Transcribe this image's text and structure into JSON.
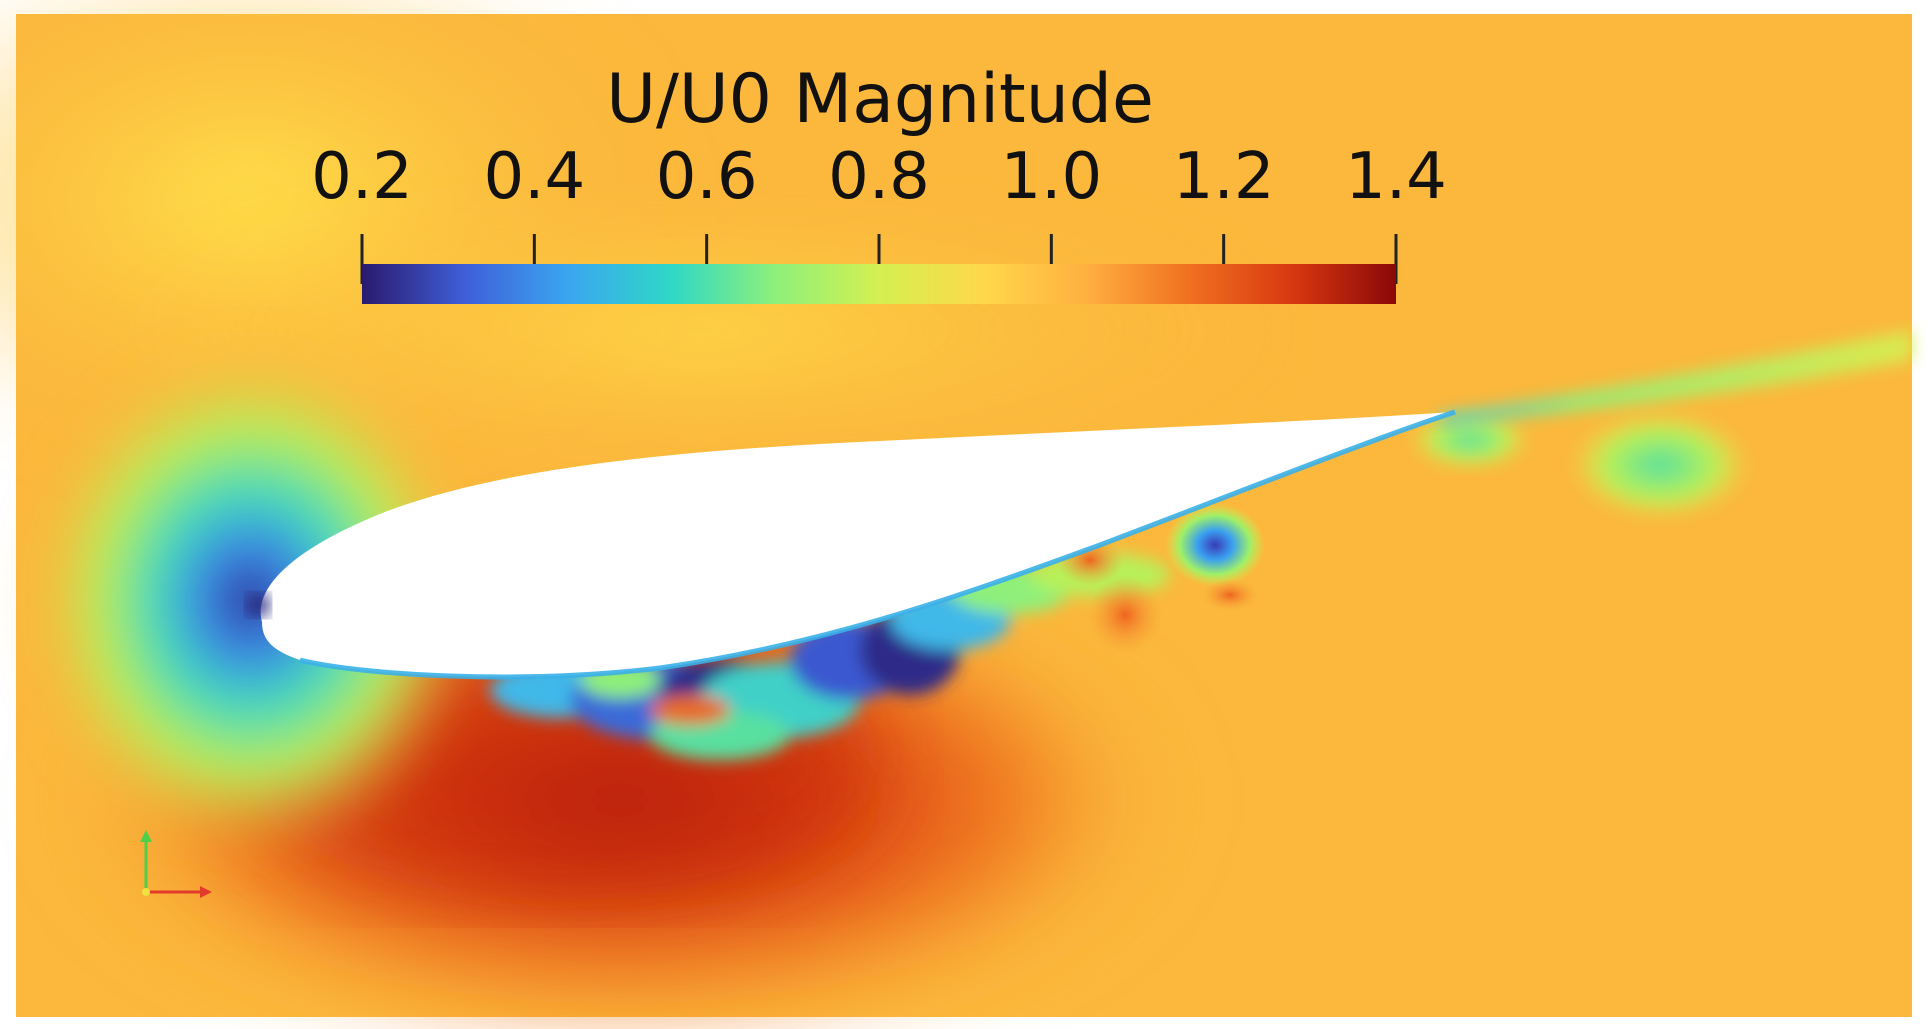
{
  "colorbar": {
    "title": "U/U0 Magnitude",
    "min": 0.2,
    "max": 1.4,
    "ticks": [
      "0.2",
      "0.4",
      "0.6",
      "0.8",
      "1.0",
      "1.2",
      "1.4"
    ],
    "tick_values": [
      0.2,
      0.4,
      0.6,
      0.8,
      1.0,
      1.2,
      1.4
    ],
    "colormap": [
      "#2a1a6e",
      "#3f5fd8",
      "#3aa6f0",
      "#2fd8c6",
      "#8ef07a",
      "#d4f050",
      "#ffd84a",
      "#ffb040",
      "#f07020",
      "#d83810",
      "#8a0808"
    ]
  },
  "field": {
    "freestream_color": "#fbb83c",
    "accel_color": "#e65a18",
    "stagnation_color": "#2c2a80",
    "airfoil_color": "#ffffff"
  },
  "axes_triad": {
    "x_color": "#e23b2b",
    "y_color": "#4fd04a",
    "z_color": "#f0e040"
  }
}
